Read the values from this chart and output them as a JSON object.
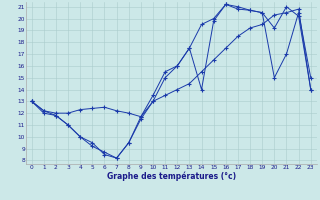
{
  "title": "Graphe des températures (°c)",
  "background_color": "#cce8e8",
  "line_color": "#1a3aaa",
  "ylim": [
    8,
    21
  ],
  "xlim": [
    0,
    23
  ],
  "yticks": [
    8,
    9,
    10,
    11,
    12,
    13,
    14,
    15,
    16,
    17,
    18,
    19,
    20,
    21
  ],
  "xticks": [
    0,
    1,
    2,
    3,
    4,
    5,
    6,
    7,
    8,
    9,
    10,
    11,
    12,
    13,
    14,
    15,
    16,
    17,
    18,
    19,
    20,
    21,
    22,
    23
  ],
  "line1_x": [
    0,
    1,
    2,
    3,
    4,
    5,
    6,
    7,
    8,
    9,
    10,
    11,
    12,
    13,
    14,
    15,
    16,
    17,
    18,
    19,
    20,
    21,
    22,
    23
  ],
  "line1_y": [
    13,
    12,
    11.8,
    11,
    10,
    9.5,
    8.5,
    8.2,
    9.5,
    11.5,
    13,
    15,
    16,
    17.5,
    14,
    19.8,
    21.2,
    21,
    20.7,
    20.5,
    15,
    17,
    20.5,
    15
  ],
  "line2_x": [
    0,
    1,
    2,
    3,
    4,
    5,
    6,
    7,
    8,
    9,
    10,
    11,
    12,
    13,
    14,
    15,
    16,
    17,
    18,
    19,
    20,
    21,
    22,
    23
  ],
  "line2_y": [
    13,
    12.2,
    12,
    12,
    12.3,
    12.4,
    12.5,
    12.2,
    12,
    11.7,
    13,
    13.5,
    14,
    14.5,
    15.5,
    16.5,
    17.5,
    18.5,
    19.2,
    19.5,
    20.3,
    20.5,
    20.8,
    14
  ],
  "line3_x": [
    0,
    1,
    2,
    3,
    4,
    5,
    6,
    7,
    8,
    9,
    10,
    11,
    12,
    13,
    14,
    15,
    16,
    17,
    18,
    19,
    20,
    21,
    22,
    23
  ],
  "line3_y": [
    13,
    12.2,
    11.8,
    11,
    10,
    9.2,
    8.7,
    8.2,
    9.5,
    11.7,
    13.5,
    15.5,
    16,
    17.5,
    19.5,
    20,
    21.2,
    20.8,
    20.7,
    20.5,
    19.2,
    21,
    20.2,
    14
  ]
}
